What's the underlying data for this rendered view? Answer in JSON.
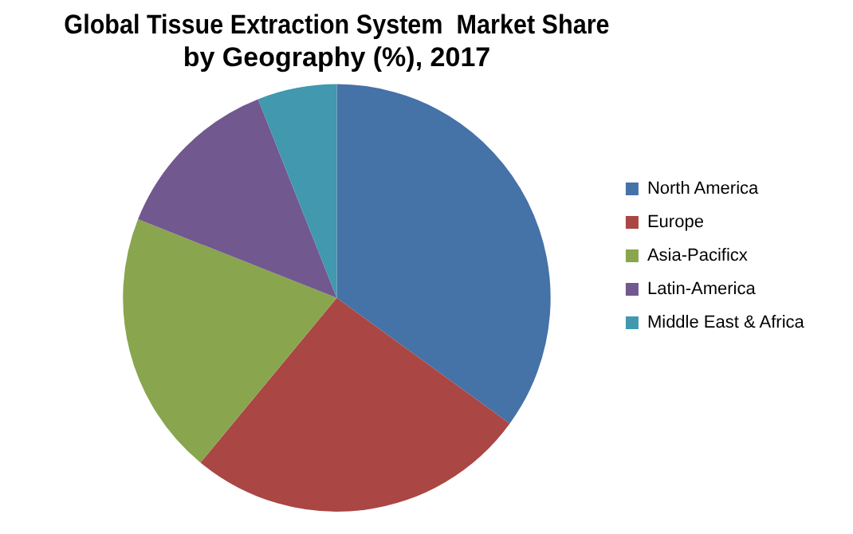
{
  "chart_data": {
    "type": "pie",
    "title": [
      "Global Tissue Extraction System  Market Share",
      "by Geography (%), 2017"
    ],
    "categories": [
      "North America",
      "Europe",
      "Asia-Pacificx",
      "Latin-America",
      "Middle East & Africa"
    ],
    "values": [
      35,
      26,
      20,
      13,
      6
    ],
    "colors": [
      "#4572a7",
      "#aa4643",
      "#89a54e",
      "#71588f",
      "#4198af"
    ],
    "legend": "right"
  }
}
